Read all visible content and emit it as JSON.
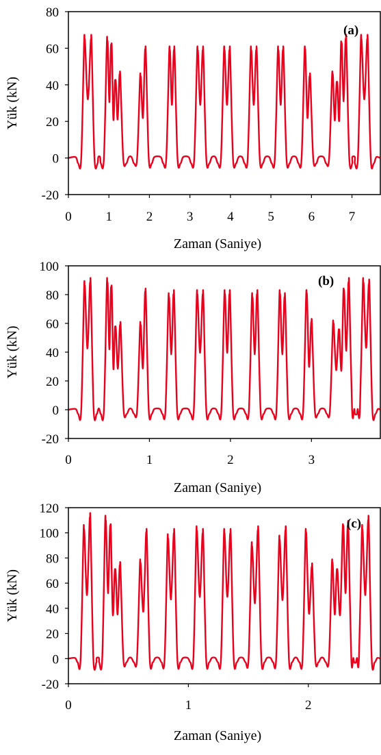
{
  "chart_data": [
    {
      "type": "line",
      "panel_label": "(a)",
      "xlabel": "Zaman (Saniye)",
      "ylabel": "Yük (kN)",
      "xlim": [
        0,
        7.7
      ],
      "ylim": [
        -20,
        80
      ],
      "xticks": [
        0,
        1,
        2,
        3,
        4,
        5,
        6,
        7
      ],
      "yticks": [
        -20,
        0,
        20,
        40,
        60,
        80
      ],
      "grid": false,
      "legend": "none",
      "color": "#e8001c",
      "peaks": [
        {
          "t": 0.4,
          "v": 64
        },
        {
          "t": 0.56,
          "v": 64
        },
        {
          "t": 0.96,
          "v": 63
        },
        {
          "t": 1.06,
          "v": 61
        },
        {
          "t": 1.16,
          "v": 42
        },
        {
          "t": 1.27,
          "v": 45
        },
        {
          "t": 1.78,
          "v": 44
        },
        {
          "t": 1.9,
          "v": 58
        },
        {
          "t": 2.5,
          "v": 58
        },
        {
          "t": 2.61,
          "v": 58
        },
        {
          "t": 3.19,
          "v": 58
        },
        {
          "t": 3.32,
          "v": 58
        },
        {
          "t": 3.85,
          "v": 58
        },
        {
          "t": 3.98,
          "v": 58
        },
        {
          "t": 4.51,
          "v": 58
        },
        {
          "t": 4.64,
          "v": 58
        },
        {
          "t": 5.18,
          "v": 58
        },
        {
          "t": 5.3,
          "v": 58
        },
        {
          "t": 5.84,
          "v": 58
        },
        {
          "t": 5.96,
          "v": 44
        },
        {
          "t": 6.52,
          "v": 45
        },
        {
          "t": 6.63,
          "v": 41
        },
        {
          "t": 6.74,
          "v": 62
        },
        {
          "t": 6.85,
          "v": 64
        },
        {
          "t": 7.23,
          "v": 64
        },
        {
          "t": 7.38,
          "v": 64
        }
      ],
      "series": [
        {
          "color": "#e8001c"
        }
      ]
    },
    {
      "type": "line",
      "panel_label": "(b)",
      "xlabel": "Zaman (Saniye)",
      "ylabel": "Yük (kN)",
      "xlim": [
        0,
        3.85
      ],
      "ylim": [
        -20,
        100
      ],
      "xticks": [
        0,
        1,
        2,
        3
      ],
      "yticks": [
        -20,
        0,
        20,
        40,
        60,
        80,
        100
      ],
      "grid": false,
      "legend": "none",
      "color": "#e8001c",
      "peaks": [
        {
          "t": 0.2,
          "v": 85
        },
        {
          "t": 0.27,
          "v": 87
        },
        {
          "t": 0.48,
          "v": 87
        },
        {
          "t": 0.53,
          "v": 84
        },
        {
          "t": 0.58,
          "v": 57
        },
        {
          "t": 0.64,
          "v": 58
        },
        {
          "t": 0.89,
          "v": 58
        },
        {
          "t": 0.95,
          "v": 80
        },
        {
          "t": 1.24,
          "v": 77
        },
        {
          "t": 1.3,
          "v": 79
        },
        {
          "t": 1.59,
          "v": 79
        },
        {
          "t": 1.66,
          "v": 79
        },
        {
          "t": 1.93,
          "v": 79
        },
        {
          "t": 1.99,
          "v": 79
        },
        {
          "t": 2.27,
          "v": 77
        },
        {
          "t": 2.33,
          "v": 79
        },
        {
          "t": 2.61,
          "v": 79
        },
        {
          "t": 2.67,
          "v": 77
        },
        {
          "t": 2.94,
          "v": 79
        },
        {
          "t": 3.0,
          "v": 60
        },
        {
          "t": 3.27,
          "v": 59
        },
        {
          "t": 3.34,
          "v": 55
        },
        {
          "t": 3.4,
          "v": 82
        },
        {
          "t": 3.46,
          "v": 87
        },
        {
          "t": 3.64,
          "v": 87
        },
        {
          "t": 3.71,
          "v": 86
        }
      ],
      "series": [
        {
          "color": "#e8001c"
        }
      ]
    },
    {
      "type": "line",
      "panel_label": "(c)",
      "xlabel": "Zaman (Saniye)",
      "ylabel": "Yük (kN)",
      "xlim": [
        0,
        2.6
      ],
      "ylim": [
        -20,
        120
      ],
      "xticks": [
        0,
        1,
        2
      ],
      "yticks": [
        -20,
        0,
        20,
        40,
        60,
        80,
        100,
        120
      ],
      "grid": false,
      "legend": "none",
      "color": "#e8001c",
      "peaks": [
        {
          "t": 0.13,
          "v": 101
        },
        {
          "t": 0.18,
          "v": 110
        },
        {
          "t": 0.31,
          "v": 108
        },
        {
          "t": 0.35,
          "v": 104
        },
        {
          "t": 0.39,
          "v": 70
        },
        {
          "t": 0.43,
          "v": 73
        },
        {
          "t": 0.6,
          "v": 75
        },
        {
          "t": 0.65,
          "v": 98
        },
        {
          "t": 0.83,
          "v": 94
        },
        {
          "t": 0.88,
          "v": 98
        },
        {
          "t": 1.07,
          "v": 100
        },
        {
          "t": 1.12,
          "v": 98
        },
        {
          "t": 1.3,
          "v": 98
        },
        {
          "t": 1.35,
          "v": 98
        },
        {
          "t": 1.53,
          "v": 88
        },
        {
          "t": 1.58,
          "v": 100
        },
        {
          "t": 1.76,
          "v": 93
        },
        {
          "t": 1.81,
          "v": 100
        },
        {
          "t": 1.98,
          "v": 98
        },
        {
          "t": 2.03,
          "v": 72
        },
        {
          "t": 2.2,
          "v": 75
        },
        {
          "t": 2.24,
          "v": 70
        },
        {
          "t": 2.29,
          "v": 104
        },
        {
          "t": 2.33,
          "v": 104
        },
        {
          "t": 2.45,
          "v": 101
        },
        {
          "t": 2.5,
          "v": 108
        }
      ],
      "series": [
        {
          "color": "#e8001c"
        }
      ]
    }
  ]
}
